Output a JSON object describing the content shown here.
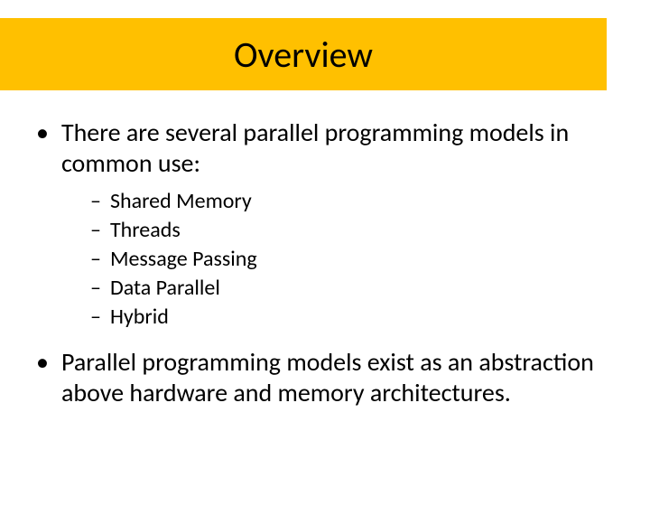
{
  "colors": {
    "title_bg": "#ffc000",
    "text": "#000000",
    "page_bg": "#ffffff"
  },
  "typography": {
    "title_fontsize": 40,
    "body_fontsize": 28,
    "sub_fontsize": 24,
    "font_family": "Calibri"
  },
  "title": "Overview",
  "bullets": [
    {
      "text": "There are several parallel programming models in common use:",
      "sub": [
        "Shared Memory",
        "Threads",
        "Message Passing",
        "Data Parallel",
        "Hybrid"
      ]
    },
    {
      "text": "Parallel programming models exist as an abstraction above hardware and memory architectures.",
      "sub": []
    }
  ],
  "markers": {
    "level1": "•",
    "level2": "–"
  }
}
